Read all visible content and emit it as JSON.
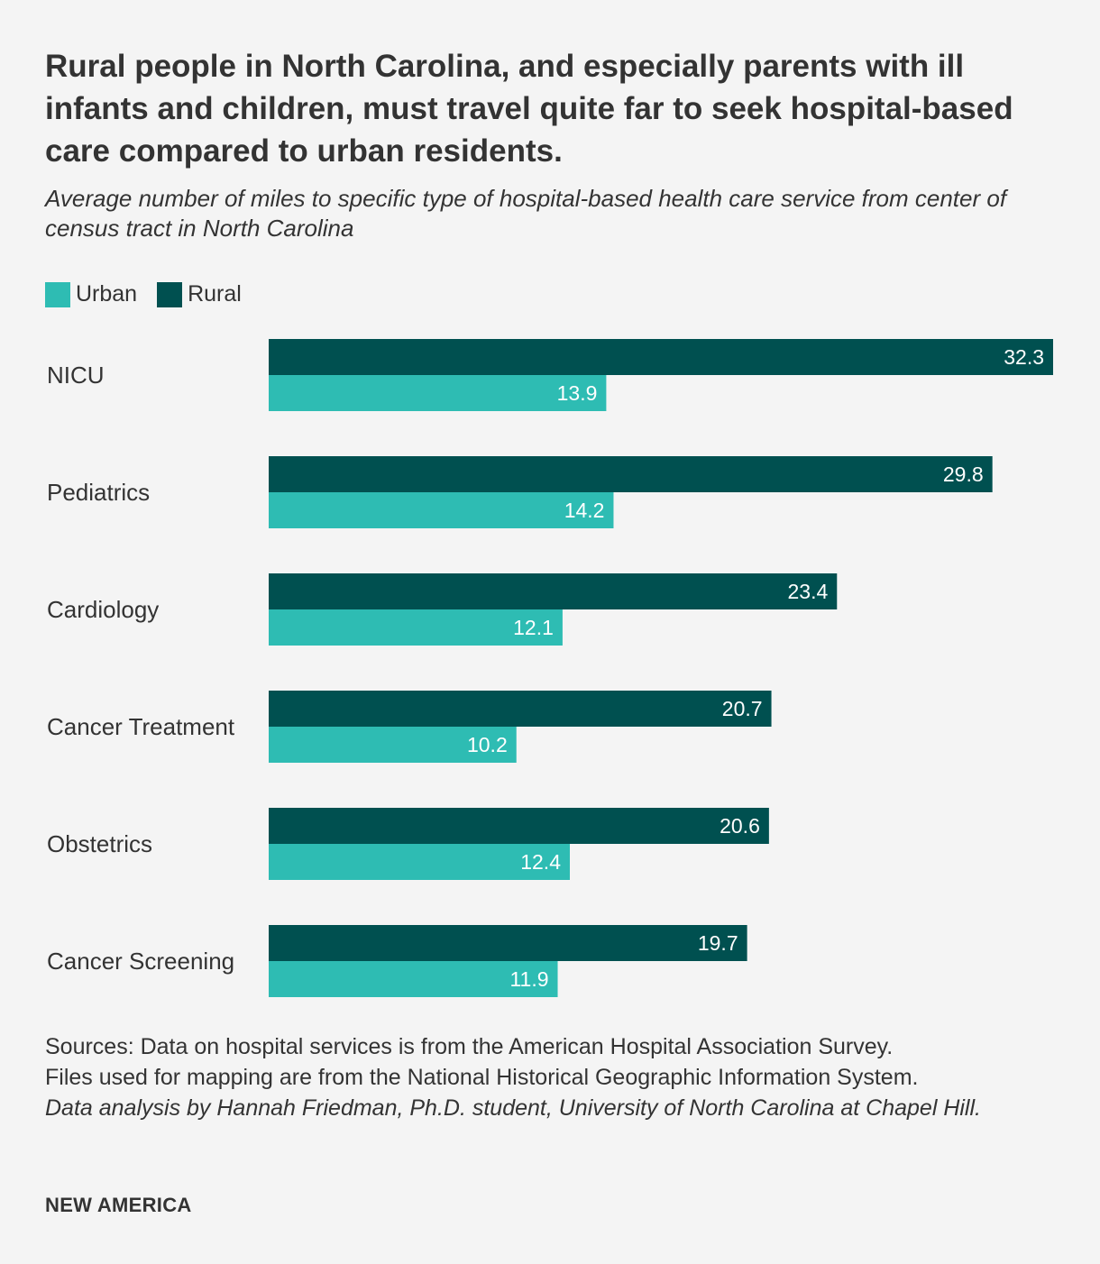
{
  "title": "Rural people in North Carolina, and especially parents with ill infants and children, must travel quite far to seek hospital-based care compared to urban residents.",
  "subtitle": "Average number of miles to specific type of hospital-based health care service from center of census tract in North Carolina",
  "legend": {
    "urban": "Urban",
    "rural": "Rural"
  },
  "colors": {
    "urban": "#2ebcb3",
    "rural": "#005050",
    "background": "#f4f4f4",
    "text": "#333333"
  },
  "chart_data": {
    "type": "bar",
    "orientation": "horizontal",
    "categories": [
      "NICU",
      "Pediatrics",
      "Cardiology",
      "Cancer Treatment",
      "Obstetrics",
      "Cancer Screening"
    ],
    "series": [
      {
        "name": "Rural",
        "values": [
          32.3,
          29.8,
          23.4,
          20.7,
          20.6,
          19.7
        ]
      },
      {
        "name": "Urban",
        "values": [
          13.9,
          14.2,
          12.1,
          10.2,
          12.4,
          11.9
        ]
      }
    ],
    "xlim": [
      0,
      32.3
    ],
    "xlabel": "",
    "ylabel": "",
    "grid": false,
    "legend_position": "top-left"
  },
  "sources": {
    "line1": "Sources: Data on hospital services is from the American Hospital Association Survey.",
    "line2": "Files used for mapping are from the National Historical Geographic Information System.",
    "credit": "Data analysis by Hannah Friedman, Ph.D. student, University of North Carolina at Chapel Hill."
  },
  "brand": "NEW AMERICA"
}
